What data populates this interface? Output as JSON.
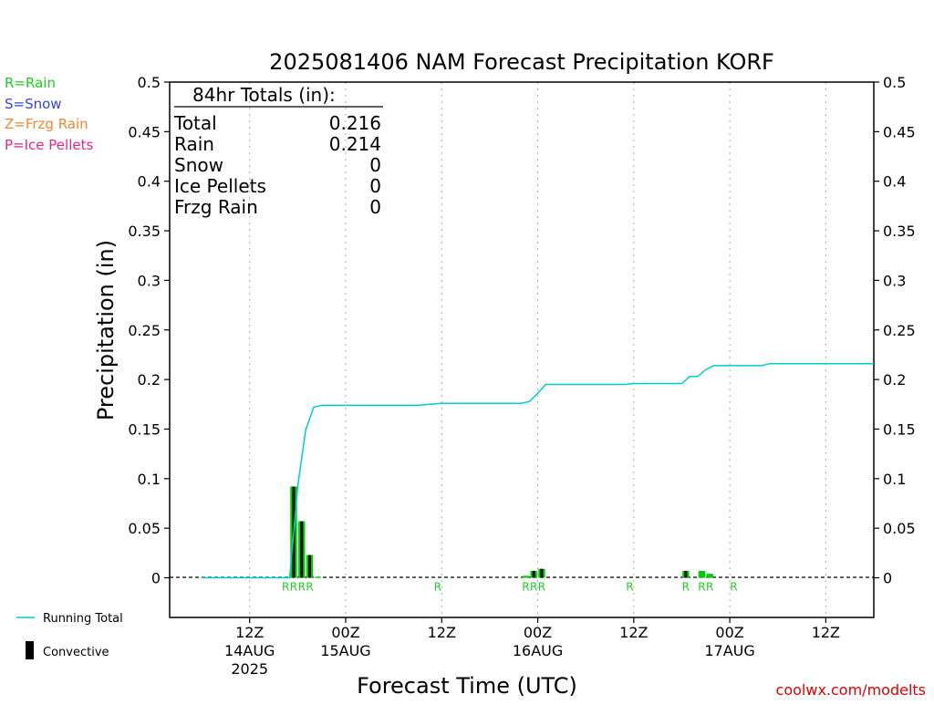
{
  "chart_data": {
    "type": "bar",
    "title": "2025081406 NAM Forecast Precipitation KORF",
    "ylabel": "Precipitation  (in)",
    "xlabel": "Forecast Time (UTC)",
    "ylim": [
      -0.04,
      0.5
    ],
    "y_ticks": [
      0,
      0.05,
      0.1,
      0.15,
      0.2,
      0.25,
      0.3,
      0.35,
      0.4,
      0.45,
      0.5
    ],
    "y_tick_labels": [
      "0",
      "0.05",
      "0.1",
      "0.15",
      "0.2",
      "0.25",
      "0.3",
      "0.35",
      "0.4",
      "0.45",
      "0.5"
    ],
    "x_unit": "forecast hour",
    "xlim": [
      -4,
      84
    ],
    "x_ticks": [
      {
        "hour": 6,
        "label": "12Z",
        "date": "14AUG",
        "year": "2025"
      },
      {
        "hour": 18,
        "label": "00Z",
        "date": "15AUG",
        "year": ""
      },
      {
        "hour": 30,
        "label": "12Z",
        "date": "",
        "year": ""
      },
      {
        "hour": 42,
        "label": "00Z",
        "date": "16AUG",
        "year": ""
      },
      {
        "hour": 54,
        "label": "12Z",
        "date": "",
        "year": ""
      },
      {
        "hour": 66,
        "label": "00Z",
        "date": "17AUG",
        "year": ""
      },
      {
        "hour": 78,
        "label": "12Z",
        "date": "",
        "year": ""
      }
    ],
    "grid": true,
    "bars": [
      {
        "hour": 12,
        "total": 0.092,
        "convective": 0.092,
        "ptype": "R"
      },
      {
        "hour": 13,
        "total": 0.057,
        "convective": 0.057,
        "ptype": "R"
      },
      {
        "hour": 14,
        "total": 0.023,
        "convective": 0.023,
        "ptype": "R"
      },
      {
        "hour": 15,
        "total": 0.001,
        "convective": 0.0,
        "ptype": "R"
      },
      {
        "hour": 41,
        "total": 0.002,
        "convective": 0.0,
        "ptype": "R"
      },
      {
        "hour": 42,
        "total": 0.007,
        "convective": 0.007,
        "ptype": "R"
      },
      {
        "hour": 43,
        "total": 0.009,
        "convective": 0.009,
        "ptype": "R"
      },
      {
        "hour": 61,
        "total": 0.007,
        "convective": 0.007,
        "ptype": "R"
      },
      {
        "hour": 63,
        "total": 0.007,
        "convective": 0.0,
        "ptype": "R"
      },
      {
        "hour": 64,
        "total": 0.004,
        "convective": 0.0,
        "ptype": "R"
      }
    ],
    "ptype_markers": [
      {
        "hour": 11,
        "label": "R"
      },
      {
        "hour": 12,
        "label": "R"
      },
      {
        "hour": 13,
        "label": "R"
      },
      {
        "hour": 14,
        "label": "R"
      },
      {
        "hour": 30,
        "label": "R"
      },
      {
        "hour": 41,
        "label": "R"
      },
      {
        "hour": 42,
        "label": "R"
      },
      {
        "hour": 43,
        "label": "R"
      },
      {
        "hour": 54,
        "label": "R"
      },
      {
        "hour": 61,
        "label": "R"
      },
      {
        "hour": 63,
        "label": "R"
      },
      {
        "hour": 64,
        "label": "R"
      },
      {
        "hour": 67,
        "label": "R"
      }
    ],
    "running_total": {
      "name": "Running Total",
      "x": [
        0,
        11,
        12,
        13,
        14,
        15,
        27,
        30,
        40,
        41,
        42,
        43,
        53,
        54,
        60,
        61,
        62,
        63,
        64,
        70,
        71,
        84
      ],
      "y": [
        0,
        0,
        0.092,
        0.149,
        0.172,
        0.174,
        0.174,
        0.176,
        0.176,
        0.178,
        0.186,
        0.195,
        0.195,
        0.196,
        0.196,
        0.203,
        0.203,
        0.21,
        0.214,
        0.214,
        0.216,
        0.216
      ]
    },
    "totals_box": {
      "heading": "84hr Totals (in):",
      "rows": [
        {
          "label": "Total",
          "value": "0.216"
        },
        {
          "label": "Rain",
          "value": "0.214"
        },
        {
          "label": "Snow",
          "value": "0"
        },
        {
          "label": "Ice Pellets",
          "value": "0"
        },
        {
          "label": "Frzg Rain",
          "value": "0"
        }
      ]
    },
    "ptype_legend": [
      {
        "text": "R=Rain",
        "color": "#22cc22"
      },
      {
        "text": "S=Snow",
        "color": "#3344ee"
      },
      {
        "text": "Z=Frzg Rain",
        "color": "#ee8833"
      },
      {
        "text": "P=Ice Pellets",
        "color": "#ee2288"
      }
    ],
    "series_legend": [
      {
        "text": "Running Total",
        "kind": "line",
        "color": "#00cccc"
      },
      {
        "text": "Convective",
        "kind": "bar",
        "color": "#000000"
      }
    ],
    "colors": {
      "rain": "#00cc00",
      "convective": "#000000",
      "running_total": "#00cccc",
      "ptype_marker": "#22cc22",
      "grid": "#aaaaaa",
      "credit": "#dd0000"
    },
    "credit": "coolwx.com/modelts"
  }
}
